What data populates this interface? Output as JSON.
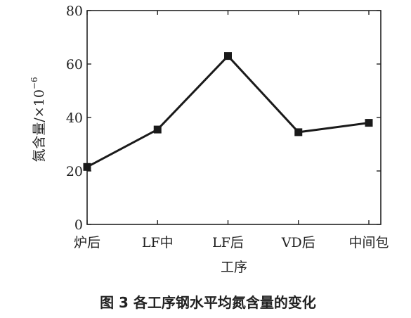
{
  "chart_data": {
    "type": "line",
    "categories": [
      "炉后",
      "LF中",
      "LF后",
      "VD后",
      "中间包"
    ],
    "series": [
      {
        "values": [
          21.5,
          35.5,
          63,
          34.5,
          38
        ]
      }
    ],
    "xlabel": "工序",
    "ylabel": "氮含量/×10",
    "ylabel_exponent": "−6",
    "ylim": [
      0,
      80
    ],
    "yticks": [
      0,
      20,
      40,
      60,
      80
    ],
    "grid": false,
    "marker": "square",
    "line_color": "#1a1a1a"
  },
  "caption": "图 3  各工序钢水平均氮含量的变化"
}
